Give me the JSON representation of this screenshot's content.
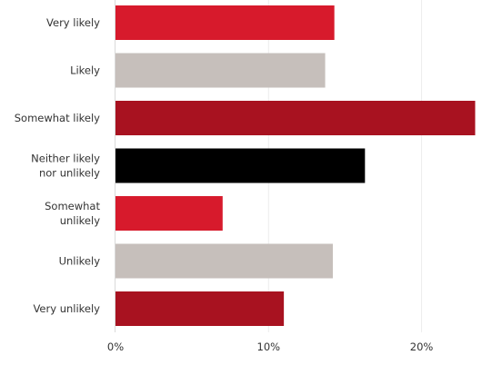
{
  "chart_data": {
    "type": "bar",
    "orientation": "horizontal",
    "categories": [
      [
        "Very likely"
      ],
      [
        "Likely"
      ],
      [
        "Somewhat likely"
      ],
      [
        "Neither likely",
        "nor unlikely"
      ],
      [
        "Somewhat",
        "unlikely"
      ],
      [
        "Unlikely"
      ],
      [
        "Very unlikely"
      ]
    ],
    "values": [
      14.3,
      13.7,
      23.5,
      16.3,
      7.0,
      14.2,
      11.0
    ],
    "colors": [
      "#d71a2c",
      "#c6bfbb",
      "#a81220",
      "#000000",
      "#d71a2c",
      "#c6bfbb",
      "#a81220"
    ],
    "xlim": [
      0,
      24.6
    ],
    "xticks": [
      0,
      10,
      20
    ],
    "xtick_labels": [
      "0%",
      "10%",
      "20%"
    ],
    "grid": true,
    "colors_meta": {
      "axis": "#d9d9d9",
      "grid": "#ececec",
      "text": "#333333"
    }
  }
}
